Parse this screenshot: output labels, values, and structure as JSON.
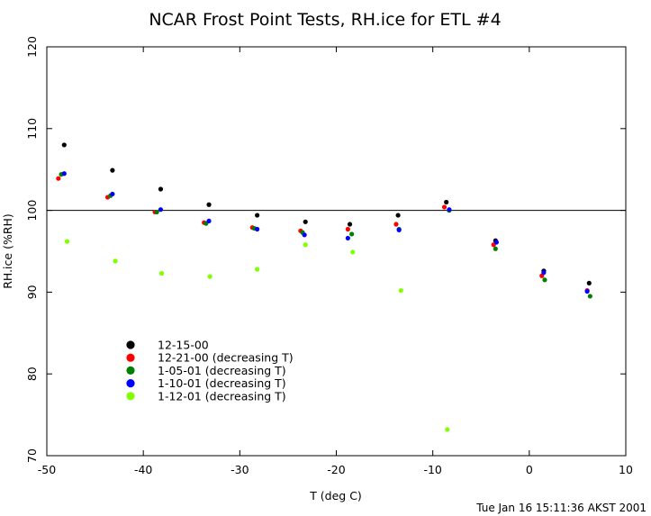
{
  "chart_data": {
    "type": "scatter",
    "title": "NCAR Frost Point Tests, RH.ice for ETL #4",
    "xlabel": "T (deg C)",
    "ylabel": "RH.ice (%RH)",
    "xlim": [
      -50,
      10
    ],
    "ylim": [
      70,
      120
    ],
    "x_ticks": [
      -50,
      -40,
      -30,
      -20,
      -10,
      0,
      10
    ],
    "x_tick_labels": [
      "-50",
      "-40",
      "-30",
      "-20",
      "-10",
      "0",
      "10"
    ],
    "y_ticks": [
      70,
      80,
      90,
      100,
      110,
      120
    ],
    "y_tick_labels": [
      "70",
      "80",
      "90",
      "100",
      "110",
      "120"
    ],
    "reference_line_y": 100,
    "grid": false,
    "legend_position": "lower-left",
    "series": [
      {
        "name": "12-15-00",
        "color": "#000000",
        "points": [
          [
            -48.2,
            108.0
          ],
          [
            -43.2,
            104.9
          ],
          [
            -38.2,
            102.6
          ],
          [
            -33.2,
            100.7
          ],
          [
            -28.2,
            99.4
          ],
          [
            -23.2,
            98.6
          ],
          [
            -18.6,
            98.3
          ],
          [
            -13.6,
            99.4
          ],
          [
            -8.6,
            101.0
          ],
          [
            -3.5,
            96.3
          ],
          [
            1.5,
            92.6
          ],
          [
            6.2,
            91.1
          ]
        ]
      },
      {
        "name": "12-21-00 (decreasing T)",
        "color": "#ff0000",
        "points": [
          [
            -48.8,
            103.9
          ],
          [
            -43.7,
            101.6
          ],
          [
            -38.8,
            99.8
          ],
          [
            -33.7,
            98.5
          ],
          [
            -28.7,
            97.9
          ],
          [
            -23.7,
            97.5
          ],
          [
            -18.8,
            97.7
          ],
          [
            -13.8,
            98.3
          ],
          [
            -8.8,
            100.4
          ],
          [
            -3.7,
            95.8
          ],
          [
            1.3,
            92.0
          ],
          [
            6.0,
            90.2
          ]
        ]
      },
      {
        "name": "1-05-01 (decreasing T)",
        "color": "#008000",
        "points": [
          [
            -48.5,
            104.4
          ],
          [
            -43.4,
            101.8
          ],
          [
            -38.6,
            99.8
          ],
          [
            -33.5,
            98.4
          ],
          [
            -28.5,
            97.8
          ],
          [
            -23.5,
            97.3
          ],
          [
            -18.4,
            97.1
          ],
          [
            -13.5,
            97.7
          ],
          [
            -8.3,
            100.0
          ],
          [
            -3.5,
            95.3
          ],
          [
            1.6,
            91.5
          ],
          [
            6.3,
            89.5
          ]
        ]
      },
      {
        "name": "1-10-01 (decreasing T)",
        "color": "#0000ff",
        "points": [
          [
            -48.2,
            104.5
          ],
          [
            -43.2,
            102.0
          ],
          [
            -38.2,
            100.1
          ],
          [
            -33.2,
            98.7
          ],
          [
            -28.2,
            97.7
          ],
          [
            -23.3,
            97.0
          ],
          [
            -18.8,
            96.6
          ],
          [
            -13.5,
            97.6
          ],
          [
            -8.3,
            100.1
          ],
          [
            -3.4,
            96.1
          ],
          [
            1.5,
            92.4
          ],
          [
            6.0,
            90.1
          ]
        ]
      },
      {
        "name": "1-12-01 (decreasing T)",
        "color": "#80ff00",
        "points": [
          [
            -47.9,
            96.2
          ],
          [
            -42.9,
            93.8
          ],
          [
            -38.1,
            92.3
          ],
          [
            -33.1,
            91.9
          ],
          [
            -28.2,
            92.8
          ],
          [
            -23.2,
            95.8
          ],
          [
            -18.3,
            94.9
          ],
          [
            -13.3,
            90.2
          ],
          [
            -8.5,
            73.2
          ]
        ]
      }
    ]
  },
  "footer": {
    "timestamp": "Tue Jan 16 15:11:36 AKST 2001"
  }
}
